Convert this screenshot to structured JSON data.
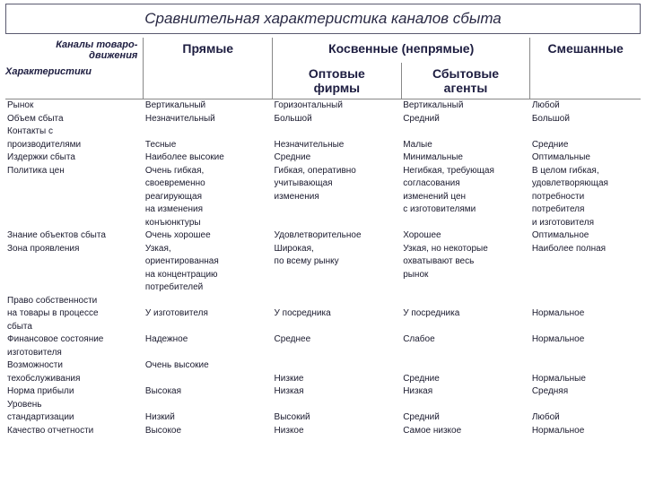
{
  "title": "Сравнительная характеристика каналов сбыта",
  "header": {
    "channels_label_l1": "Каналы товаро-",
    "channels_label_l2": "движения",
    "characteristics_label": "Характеристики",
    "direct": "Прямые",
    "indirect": "Косвенные (непрямые)",
    "mixed": "Смешанные",
    "wholesale_l1": "Оптовые",
    "wholesale_l2": "фирмы",
    "agents_l1": "Сбытовые",
    "agents_l2": "агенты"
  },
  "rows": {
    "r1": {
      "label": "Рынок",
      "a": "Вертикальный",
      "b": "Горизонтальный",
      "c": "Вертикальный",
      "d": "Любой"
    },
    "r2": {
      "label": "Объем сбыта",
      "a": "Незначительный",
      "b": "Большой",
      "c": "Средний",
      "d": "Большой"
    },
    "r3": {
      "label": "Контакты с",
      "a": "",
      "b": "",
      "c": "",
      "d": ""
    },
    "r4": {
      "label": "производителями",
      "a": "Тесные",
      "b": "Незначительные",
      "c": "Малые",
      "d": "Средние"
    },
    "r5": {
      "label": "Издержки сбыта",
      "a": "Наиболее высокие",
      "b": "Средние",
      "c": "Минимальные",
      "d": "Оптимальные"
    },
    "r6": {
      "label": "Политика цен",
      "a": "Очень гибкая,",
      "b": "Гибкая, оперативно",
      "c": "Негибкая, требующая",
      "d": "В целом гибкая,"
    },
    "r7": {
      "label": "",
      "a": "своевременно",
      "b": "учитывающая",
      "c": "согласования",
      "d": "удовлетворяющая"
    },
    "r8": {
      "label": "",
      "a": "реагирующая",
      "b": "изменения",
      "c": "изменений цен",
      "d": "потребности"
    },
    "r9": {
      "label": "",
      "a": "на изменения",
      "b": "",
      "c": "с изготовителями",
      "d": "потребителя"
    },
    "r10": {
      "label": "",
      "a": "конъюнктуры",
      "b": "",
      "c": "",
      "d": "и изготовителя"
    },
    "r11": {
      "label": "Знание объектов сбыта",
      "a": "Очень хорошее",
      "b": "Удовлетворительное",
      "c": "Хорошее",
      "d": "Оптимальное"
    },
    "r12": {
      "label": "Зона проявления",
      "a": "Узкая,",
      "b": "Широкая,",
      "c": "Узкая, но некоторые",
      "d": "Наиболее полная"
    },
    "r13": {
      "label": "",
      "a": "ориентированная",
      "b": "по всему рынку",
      "c": "охватывают весь",
      "d": ""
    },
    "r14": {
      "label": "",
      "a": "на концентрацию",
      "b": "",
      "c": "рынок",
      "d": ""
    },
    "r15": {
      "label": "",
      "a": "потребителей",
      "b": "",
      "c": "",
      "d": ""
    },
    "r16": {
      "label": "Право собственности",
      "a": "",
      "b": "",
      "c": "",
      "d": ""
    },
    "r17": {
      "label": "на товары в процессе",
      "a": "У изготовителя",
      "b": "У посредника",
      "c": "У посредника",
      "d": "Нормальное"
    },
    "r18": {
      "label": "сбыта",
      "a": "",
      "b": "",
      "c": "",
      "d": ""
    },
    "r19": {
      "label": "Финансовое состояние",
      "a": "Надежное",
      "b": "Среднее",
      "c": "Слабое",
      "d": "Нормальное"
    },
    "r20": {
      "label": "изготовителя",
      "a": "",
      "b": "",
      "c": "",
      "d": ""
    },
    "r21": {
      "label": "Возможности",
      "a": "Очень высокие",
      "b": "",
      "c": "",
      "d": ""
    },
    "r22": {
      "label": "техобслуживания",
      "a": "",
      "b": "Низкие",
      "c": "Средние",
      "d": "Нормальные"
    },
    "r23": {
      "label": "Норма прибыли",
      "a": "Высокая",
      "b": "Низкая",
      "c": "Низкая",
      "d": "Средняя"
    },
    "r24": {
      "label": "Уровень",
      "a": "",
      "b": "",
      "c": "",
      "d": ""
    },
    "r25": {
      "label": "стандартизации",
      "a": "Низкий",
      "b": "Высокий",
      "c": "Средний",
      "d": "Любой"
    },
    "r26": {
      "label": "Качество отчетности",
      "a": "Высокое",
      "b": "Низкое",
      "c": "Самое низкое",
      "d": "Нормальное"
    }
  },
  "style": {
    "background": "#ffffff",
    "text_color": "#1a1a2e",
    "border_color": "#888888",
    "title_fontsize": 17,
    "header_fontsize": 14,
    "body_fontsize": 10
  }
}
